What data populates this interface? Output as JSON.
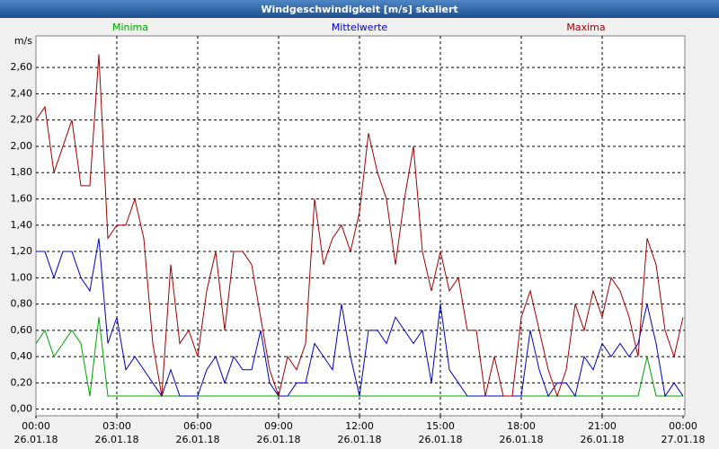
{
  "chart_data": {
    "type": "line",
    "title": "Windgeschwindigkeit [m/s] skaliert",
    "y_unit": "m/s",
    "x": [
      0,
      20,
      40,
      60,
      80,
      100,
      120,
      140,
      160,
      180,
      200,
      220,
      240,
      260,
      280,
      300,
      320,
      340,
      360,
      380,
      400,
      420,
      440,
      460,
      480,
      500,
      520,
      540,
      560,
      580,
      600,
      620,
      640,
      660,
      680,
      700,
      720,
      740,
      760,
      780,
      800,
      820,
      840,
      860,
      880,
      900,
      920,
      940,
      960,
      980,
      1000,
      1020,
      1040,
      1060,
      1080,
      1100,
      1120,
      1140,
      1160,
      1180,
      1200,
      1220,
      1240,
      1260,
      1280,
      1300,
      1320,
      1340,
      1360,
      1380,
      1400,
      1420,
      1440
    ],
    "series": [
      {
        "name": "Minima",
        "color": "#00a000",
        "values": [
          0.5,
          0.6,
          0.4,
          0.5,
          0.6,
          0.5,
          0.1,
          0.7,
          0.1,
          0.1,
          0.1,
          0.1,
          0.1,
          0.1,
          0.1,
          0.1,
          0.1,
          0.1,
          0.1,
          0.1,
          0.1,
          0.1,
          0.1,
          0.1,
          0.1,
          0.1,
          0.1,
          0.1,
          0.1,
          0.1,
          0.1,
          0.1,
          0.1,
          0.1,
          0.1,
          0.1,
          0.1,
          0.1,
          0.1,
          0.1,
          0.1,
          0.1,
          0.1,
          0.1,
          0.1,
          0.1,
          0.1,
          0.1,
          0.1,
          0.1,
          0.1,
          0.1,
          0.1,
          0.1,
          0.1,
          0.1,
          0.1,
          0.1,
          0.1,
          0.1,
          0.1,
          0.1,
          0.1,
          0.1,
          0.1,
          0.1,
          0.1,
          0.1,
          0.4,
          0.1,
          0.1,
          0.1,
          0.1
        ]
      },
      {
        "name": "Mittelwerte",
        "color": "#0000c0",
        "values": [
          1.2,
          1.2,
          1.0,
          1.2,
          1.2,
          1.0,
          0.9,
          1.3,
          0.5,
          0.7,
          0.3,
          0.4,
          0.3,
          0.2,
          0.1,
          0.3,
          0.1,
          0.1,
          0.1,
          0.3,
          0.4,
          0.2,
          0.4,
          0.3,
          0.3,
          0.6,
          0.2,
          0.1,
          0.1,
          0.2,
          0.2,
          0.5,
          0.4,
          0.3,
          0.8,
          0.4,
          0.1,
          0.6,
          0.6,
          0.5,
          0.7,
          0.6,
          0.5,
          0.6,
          0.2,
          0.8,
          0.3,
          0.2,
          0.1,
          0.1,
          0.1,
          0.1,
          0.1,
          0.1,
          0.1,
          0.6,
          0.3,
          0.1,
          0.2,
          0.2,
          0.1,
          0.4,
          0.3,
          0.5,
          0.4,
          0.5,
          0.4,
          0.5,
          0.8,
          0.5,
          0.1,
          0.2,
          0.1
        ]
      },
      {
        "name": "Maxima",
        "color": "#a00000",
        "values": [
          2.2,
          2.3,
          1.8,
          2.0,
          2.2,
          1.7,
          1.7,
          2.7,
          1.3,
          1.4,
          1.4,
          1.6,
          1.3,
          0.5,
          0.1,
          1.1,
          0.5,
          0.6,
          0.4,
          0.9,
          1.2,
          0.6,
          1.2,
          1.2,
          1.1,
          0.7,
          0.3,
          0.1,
          0.4,
          0.3,
          0.5,
          1.6,
          1.1,
          1.3,
          1.4,
          1.2,
          1.5,
          2.1,
          1.8,
          1.6,
          1.1,
          1.6,
          2.0,
          1.2,
          0.9,
          1.2,
          0.9,
          1.0,
          0.6,
          0.6,
          0.1,
          0.4,
          0.1,
          0.1,
          0.7,
          0.9,
          0.6,
          0.3,
          0.1,
          0.3,
          0.8,
          0.6,
          0.9,
          0.7,
          1.0,
          0.9,
          0.7,
          0.4,
          1.3,
          1.1,
          0.6,
          0.4,
          0.7
        ]
      }
    ],
    "xlim": [
      0,
      1440
    ],
    "xticks": [
      {
        "value": 0,
        "label": "00:00"
      },
      {
        "value": 180,
        "label": "03:00"
      },
      {
        "value": 360,
        "label": "06:00"
      },
      {
        "value": 540,
        "label": "09:00"
      },
      {
        "value": 720,
        "label": "12:00"
      },
      {
        "value": 900,
        "label": "15:00"
      },
      {
        "value": 1080,
        "label": "18:00"
      },
      {
        "value": 1260,
        "label": "21:00"
      },
      {
        "value": 1440,
        "label": "00:00"
      }
    ],
    "xtick_dates": [
      "26.01.18",
      "26.01.18",
      "26.01.18",
      "26.01.18",
      "26.01.18",
      "26.01.18",
      "26.01.18",
      "26.01.18",
      "27.01.18"
    ],
    "ylim": [
      -0.05,
      2.84
    ],
    "yticks": [
      {
        "value": 0,
        "label": "0,00"
      },
      {
        "value": 0.2,
        "label": "0,20"
      },
      {
        "value": 0.4,
        "label": "0,40"
      },
      {
        "value": 0.6,
        "label": "0,60"
      },
      {
        "value": 0.8,
        "label": "0,80"
      },
      {
        "value": 1.0,
        "label": "1,00"
      },
      {
        "value": 1.2,
        "label": "1,20"
      },
      {
        "value": 1.4,
        "label": "1,40"
      },
      {
        "value": 1.6,
        "label": "1,60"
      },
      {
        "value": 1.8,
        "label": "1,80"
      },
      {
        "value": 2.0,
        "label": "2,00"
      },
      {
        "value": 2.2,
        "label": "2,20"
      },
      {
        "value": 2.4,
        "label": "2,40"
      },
      {
        "value": 2.6,
        "label": "2,60"
      }
    ],
    "grid": true
  }
}
